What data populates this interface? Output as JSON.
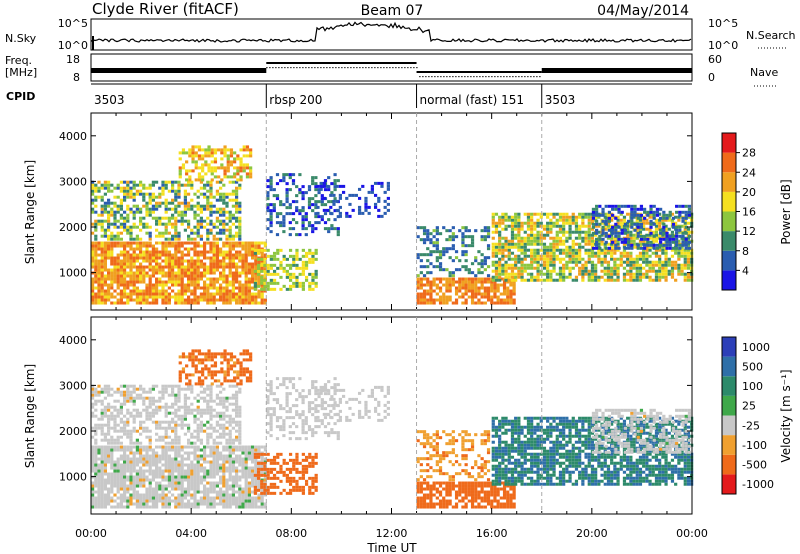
{
  "header": {
    "station": "Clyde River (fitACF)",
    "beam": "Beam 07",
    "date": "04/May/2014"
  },
  "strip_nsky": {
    "left_label": "N.Sky",
    "right_label": "N.Search",
    "left_ticks": [
      "10^5",
      "10^0"
    ],
    "right_ticks": [
      "10^5",
      "10^0"
    ]
  },
  "strip_freq": {
    "left_label_line1": "Freq.",
    "left_label_line2": "[MHz]",
    "right_label": "Nave",
    "left_ticks": [
      "18",
      "8"
    ],
    "right_ticks": [
      "60",
      "0"
    ]
  },
  "cpid": {
    "label": "CPID",
    "segments": [
      {
        "name": "3503",
        "start_h": 0,
        "end_h": 7
      },
      {
        "name": "rbsp 200",
        "start_h": 7,
        "end_h": 13
      },
      {
        "name": "normal (fast) 151",
        "start_h": 13,
        "end_h": 18
      },
      {
        "name": "3503",
        "start_h": 18,
        "end_h": 24
      }
    ]
  },
  "chart_data": [
    {
      "type": "heatmap",
      "name": "Power",
      "xlabel": "",
      "ylabel": "Slant Range [km]",
      "xlim": [
        0,
        24
      ],
      "ylim": [
        180,
        4500
      ],
      "y_ticks": [
        "1000",
        "2000",
        "3000",
        "4000"
      ],
      "colorbar_label": "Power [dB]",
      "colorbar_ticks": [
        "4",
        "8",
        "12",
        "16",
        "20",
        "24",
        "28"
      ],
      "colorbar_colors": [
        "#1a14e6",
        "#2a5db0",
        "#3a8a6a",
        "#8dc63f",
        "#f5e020",
        "#f0a020",
        "#ef6a1a",
        "#e41a1c"
      ]
    },
    {
      "type": "heatmap",
      "name": "Velocity",
      "xlabel": "Time UT",
      "ylabel": "Slant Range [km]",
      "xlim": [
        0,
        24
      ],
      "ylim": [
        180,
        4500
      ],
      "x_ticks": [
        "00:00",
        "04:00",
        "08:00",
        "12:00",
        "16:00",
        "20:00",
        "00:00"
      ],
      "y_ticks": [
        "1000",
        "2000",
        "3000",
        "4000"
      ],
      "colorbar_label": "Velocity [m s⁻¹]",
      "colorbar_ticks": [
        "1000",
        "500",
        "100",
        "25",
        "-25",
        "-100",
        "-500",
        "-1000"
      ],
      "colorbar_colors": [
        "#2c3fb8",
        "#2e6fa8",
        "#2c8a6a",
        "#3fa84a",
        "#c8c8c8",
        "#f0a030",
        "#ef6a1a",
        "#e41a1c"
      ]
    }
  ]
}
